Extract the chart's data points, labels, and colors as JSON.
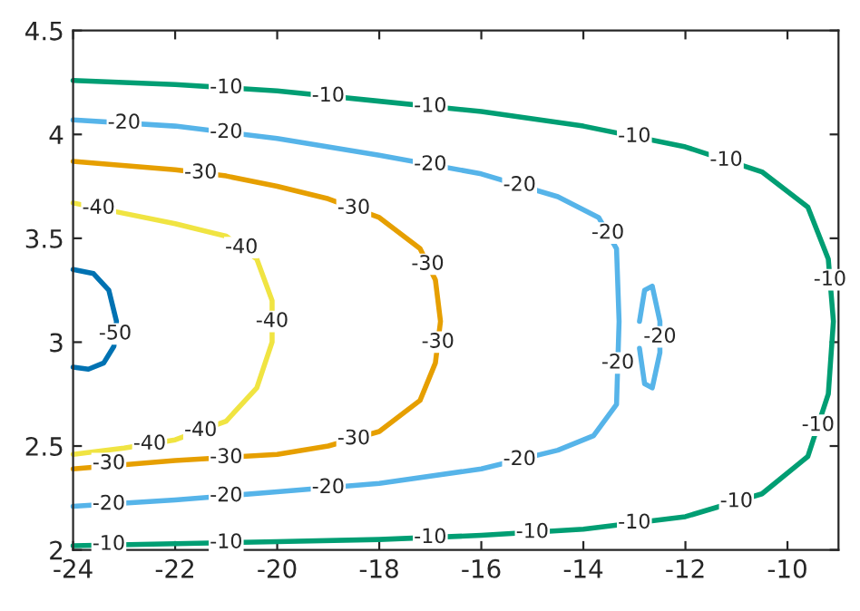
{
  "chart_data": {
    "type": "line",
    "xlim": [
      -24,
      -9
    ],
    "ylim": [
      2,
      4.5
    ],
    "xticks": [
      -24,
      -22,
      -20,
      -18,
      -16,
      -14,
      -12,
      -10
    ],
    "yticks": [
      2,
      2.5,
      3,
      3.5,
      4,
      4.5
    ],
    "grid": false,
    "legend": false,
    "marker": "none",
    "line_style": "solid",
    "series": [
      {
        "color": "#009e73",
        "x": [
          -24,
          -22,
          -20,
          -18,
          -16,
          -14,
          -12,
          -10.5,
          -9.6,
          -9.2,
          -9.1,
          -9.2,
          -9.6,
          -10.5,
          -12,
          -14,
          -16,
          -18,
          -20,
          -22,
          -24
        ],
        "values": [
          4.26,
          4.24,
          4.21,
          4.16,
          4.11,
          4.04,
          3.94,
          3.82,
          3.65,
          3.4,
          3.1,
          2.75,
          2.45,
          2.27,
          2.16,
          2.1,
          2.07,
          2.05,
          2.04,
          2.03,
          2.02
        ]
      },
      {
        "color": "#56b4e9",
        "x": [
          -24,
          -22,
          -20,
          -18,
          -16,
          -14.5,
          -13.7,
          -13.35,
          -13.3,
          -13.35,
          -13.8,
          -14.5,
          -16,
          -18,
          -20,
          -22,
          -24
        ],
        "values": [
          4.07,
          4.04,
          3.98,
          3.9,
          3.81,
          3.7,
          3.6,
          3.45,
          3.1,
          2.7,
          2.55,
          2.48,
          2.39,
          2.32,
          2.28,
          2.24,
          2.21
        ]
      },
      {
        "color": "#56b4e9",
        "x": [
          -12.9,
          -12.8,
          -12.65,
          -12.5,
          -12.5,
          -12.65,
          -12.8,
          -12.9
        ],
        "values": [
          3.1,
          3.25,
          3.27,
          3.1,
          2.95,
          2.78,
          2.8,
          2.97
        ]
      },
      {
        "color": "#e69f00",
        "x": [
          -24,
          -22,
          -21,
          -20,
          -19,
          -18,
          -17.2,
          -16.9,
          -16.8,
          -16.9,
          -17.2,
          -18,
          -19,
          -20,
          -22,
          -24
        ],
        "values": [
          3.87,
          3.83,
          3.8,
          3.75,
          3.69,
          3.6,
          3.45,
          3.3,
          3.1,
          2.9,
          2.72,
          2.57,
          2.5,
          2.46,
          2.43,
          2.39
        ]
      },
      {
        "color": "#f0e442",
        "x": [
          -24,
          -23,
          -22,
          -21,
          -20.4,
          -20.1,
          -20.1,
          -20.4,
          -21,
          -22,
          -23,
          -24
        ],
        "values": [
          3.67,
          3.62,
          3.57,
          3.51,
          3.4,
          3.2,
          3.0,
          2.78,
          2.62,
          2.53,
          2.49,
          2.46
        ]
      },
      {
        "color": "#0072b2",
        "x": [
          -24,
          -23.6,
          -23.3,
          -23.15,
          -23.2,
          -23.4,
          -23.7,
          -24
        ],
        "values": [
          3.35,
          3.33,
          3.25,
          3.1,
          2.98,
          2.9,
          2.87,
          2.88
        ]
      }
    ],
    "annotations": [
      {
        "text": "-10",
        "x": -21.0,
        "y": 4.225
      },
      {
        "text": "-10",
        "x": -19.0,
        "y": 4.185
      },
      {
        "text": "-10",
        "x": -17.0,
        "y": 4.135
      },
      {
        "text": "-10",
        "x": -13.0,
        "y": 3.99
      },
      {
        "text": "-10",
        "x": -11.2,
        "y": 3.876
      },
      {
        "text": "-10",
        "x": -9.167,
        "y": 3.3
      },
      {
        "text": "-10",
        "x": -9.4,
        "y": 2.6
      },
      {
        "text": "-10",
        "x": -11.0,
        "y": 2.233
      },
      {
        "text": "-10",
        "x": -13.0,
        "y": 2.13
      },
      {
        "text": "-10",
        "x": -15.0,
        "y": 2.085
      },
      {
        "text": "-10",
        "x": -17.0,
        "y": 2.06
      },
      {
        "text": "-10",
        "x": -21.0,
        "y": 2.035
      },
      {
        "text": "-10",
        "x": -23.3,
        "y": 2.027
      },
      {
        "text": "-20",
        "x": -23.0,
        "y": 4.055
      },
      {
        "text": "-20",
        "x": -21.0,
        "y": 4.01
      },
      {
        "text": "-20",
        "x": -17.0,
        "y": 3.855
      },
      {
        "text": "-20",
        "x": -15.25,
        "y": 3.755
      },
      {
        "text": "-20",
        "x": -13.52,
        "y": 3.525
      },
      {
        "text": "-20",
        "x": -12.5,
        "y": 3.025
      },
      {
        "text": "-20",
        "x": -13.325,
        "y": 2.9
      },
      {
        "text": "-20",
        "x": -15.25,
        "y": 2.435
      },
      {
        "text": "-20",
        "x": -19.0,
        "y": 2.3
      },
      {
        "text": "-20",
        "x": -21.0,
        "y": 2.26
      },
      {
        "text": "-20",
        "x": -23.3,
        "y": 2.2205
      },
      {
        "text": "-30",
        "x": -21.5,
        "y": 3.815
      },
      {
        "text": "-30",
        "x": -18.5,
        "y": 3.645
      },
      {
        "text": "-30",
        "x": -17.05,
        "y": 3.375
      },
      {
        "text": "-30",
        "x": -16.85,
        "y": 3.0
      },
      {
        "text": "-30",
        "x": -18.5,
        "y": 2.535
      },
      {
        "text": "-30",
        "x": -21.0,
        "y": 2.445
      },
      {
        "text": "-30",
        "x": -23.3,
        "y": 2.416
      },
      {
        "text": "-40",
        "x": -23.5,
        "y": 3.645
      },
      {
        "text": "-40",
        "x": -20.7,
        "y": 3.455
      },
      {
        "text": "-40",
        "x": -20.1,
        "y": 3.1
      },
      {
        "text": "-40",
        "x": -21.5,
        "y": 2.575
      },
      {
        "text": "-40",
        "x": -22.5,
        "y": 2.51
      },
      {
        "text": "-50",
        "x": -23.175,
        "y": 3.04
      }
    ]
  }
}
